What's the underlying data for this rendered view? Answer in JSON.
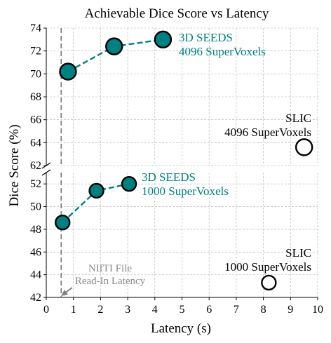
{
  "chart_data": {
    "type": "scatter",
    "title": "Achievable Dice Score vs Latency",
    "xlabel": "Latency (s)",
    "ylabel": "Dice Score (%)",
    "xlim": [
      0,
      10
    ],
    "x_ticks": [
      "0",
      "1",
      "2",
      "3",
      "4",
      "5",
      "6",
      "7",
      "8",
      "9",
      "10"
    ],
    "broken_y_axis": true,
    "upper_panel": {
      "ylim": [
        62,
        74
      ],
      "y_ticks": [
        "62",
        "64",
        "66",
        "68",
        "70",
        "72",
        "74"
      ]
    },
    "lower_panel": {
      "ylim": [
        42,
        53
      ],
      "y_ticks": [
        "42",
        "44",
        "46",
        "48",
        "50",
        "52"
      ]
    },
    "grid": true,
    "series": [
      {
        "label_lines": [
          "3D SEEDS",
          "4096 SuperVoxels"
        ],
        "color": "#008080",
        "style": "filled-dashed-line",
        "panel": "upper",
        "points": [
          {
            "x": 0.8,
            "y": 70.2
          },
          {
            "x": 2.5,
            "y": 72.4
          },
          {
            "x": 4.3,
            "y": 73.0
          }
        ]
      },
      {
        "label_lines": [
          "SLIC",
          "4096 SuperVoxels"
        ],
        "color": "#000000",
        "style": "hollow",
        "panel": "upper",
        "points": [
          {
            "x": 9.5,
            "y": 63.6
          }
        ]
      },
      {
        "label_lines": [
          "3D SEEDS",
          "1000 SuperVoxels"
        ],
        "color": "#008080",
        "style": "filled-dashed-line",
        "panel": "lower",
        "points": [
          {
            "x": 0.6,
            "y": 48.6
          },
          {
            "x": 1.85,
            "y": 51.4
          },
          {
            "x": 3.05,
            "y": 52.0
          }
        ]
      },
      {
        "label_lines": [
          "SLIC",
          "1000 SuperVoxels"
        ],
        "color": "#000000",
        "style": "hollow",
        "panel": "lower",
        "points": [
          {
            "x": 8.2,
            "y": 43.3
          }
        ]
      }
    ],
    "reference_line": {
      "x": 0.55,
      "label_lines": [
        "NIfTI File",
        "Read-In Latency"
      ]
    }
  }
}
